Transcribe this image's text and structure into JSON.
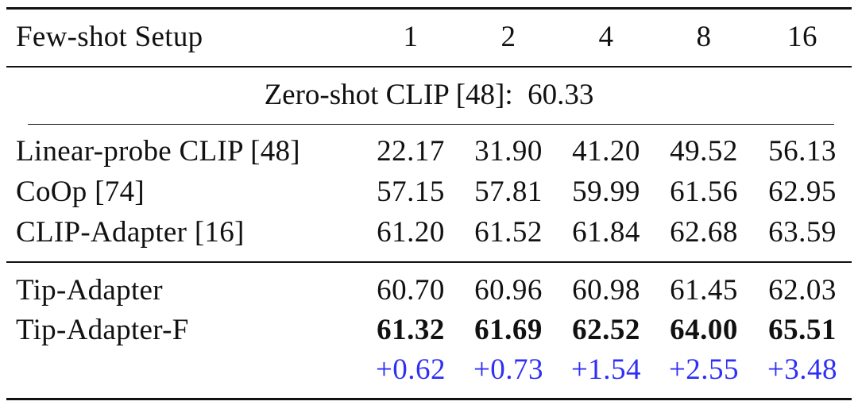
{
  "header": {
    "label": "Few-shot Setup",
    "shots": [
      "1",
      "2",
      "4",
      "8",
      "16"
    ]
  },
  "zero_shot": {
    "label": "Zero-shot CLIP [48]:",
    "value": "60.33"
  },
  "baselines": [
    {
      "method": "Linear-probe CLIP [48]",
      "values": [
        "22.17",
        "31.90",
        "41.20",
        "49.52",
        "56.13"
      ]
    },
    {
      "method": "CoOp [74]",
      "values": [
        "57.15",
        "57.81",
        "59.99",
        "61.56",
        "62.95"
      ]
    },
    {
      "method": "CLIP-Adapter [16]",
      "values": [
        "61.20",
        "61.52",
        "61.84",
        "62.68",
        "63.59"
      ]
    }
  ],
  "ours": [
    {
      "method": "Tip-Adapter",
      "values": [
        "60.70",
        "60.96",
        "60.98",
        "61.45",
        "62.03"
      ],
      "bold": false
    },
    {
      "method": "Tip-Adapter-F",
      "values": [
        "61.32",
        "61.69",
        "62.52",
        "64.00",
        "65.51"
      ],
      "bold": true
    }
  ],
  "gains": [
    "+0.62",
    "+0.73",
    "+1.54",
    "+2.55",
    "+3.48"
  ],
  "colors": {
    "gain": "#2f2ff5",
    "text": "#111111"
  }
}
